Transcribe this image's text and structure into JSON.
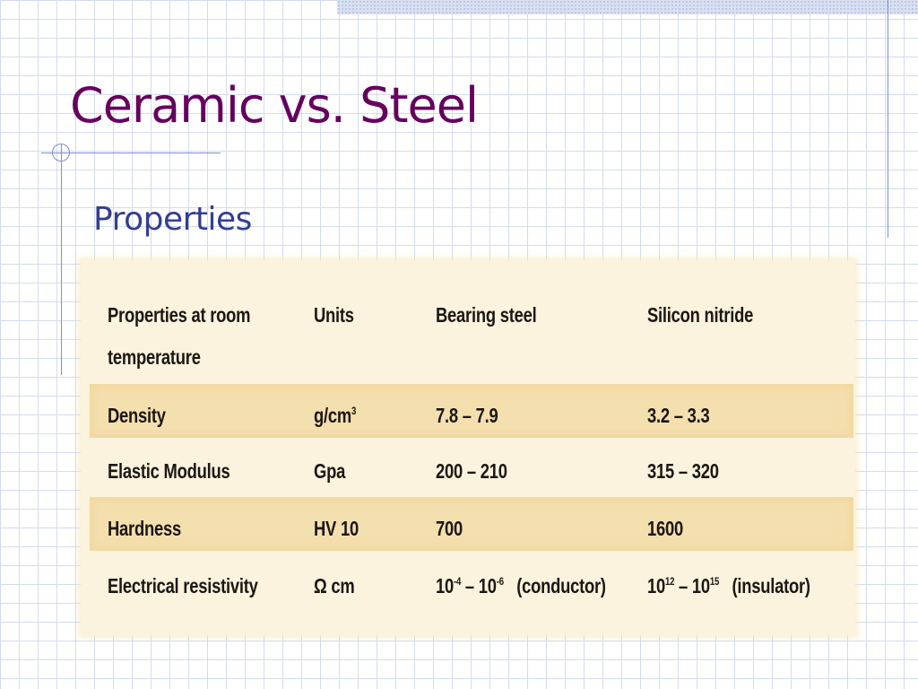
{
  "slide": {
    "title": "Ceramic vs. Steel",
    "subtitle": "Properties"
  },
  "table": {
    "headers": {
      "property": "Properties at room temperature",
      "units": "Units",
      "steel": "Bearing steel",
      "ceramic": "Silicon nitride"
    },
    "rows": [
      {
        "property": "Density",
        "units": "g/cm",
        "units_sup": "3",
        "steel": "7.8 – 7.9",
        "ceramic": "3.2 – 3.3"
      },
      {
        "property": "Elastic Modulus",
        "units": "Gpa",
        "steel": "200 – 210",
        "ceramic": "315 – 320"
      },
      {
        "property": "Hardness",
        "units": "HV 10",
        "steel": "700",
        "ceramic": "1600"
      },
      {
        "property": "Electrical resistivity",
        "units": "Ω cm",
        "steel_a": "10",
        "steel_a_sup": "-4",
        "steel_b": " – 10",
        "steel_b_sup": "-6",
        "steel_note": "(conductor)",
        "ceramic_a": "10",
        "ceramic_a_sup": "12",
        "ceramic_b": " – 10",
        "ceramic_b_sup": "15",
        "ceramic_note": "(insulator)"
      }
    ]
  },
  "colors": {
    "title": "#66005f",
    "subtitle": "#333d90",
    "grid": "#d3dbee",
    "accent_line": "#7d8fcf",
    "table_band": "#f4dfae",
    "table_background": "#fbf3dd"
  }
}
